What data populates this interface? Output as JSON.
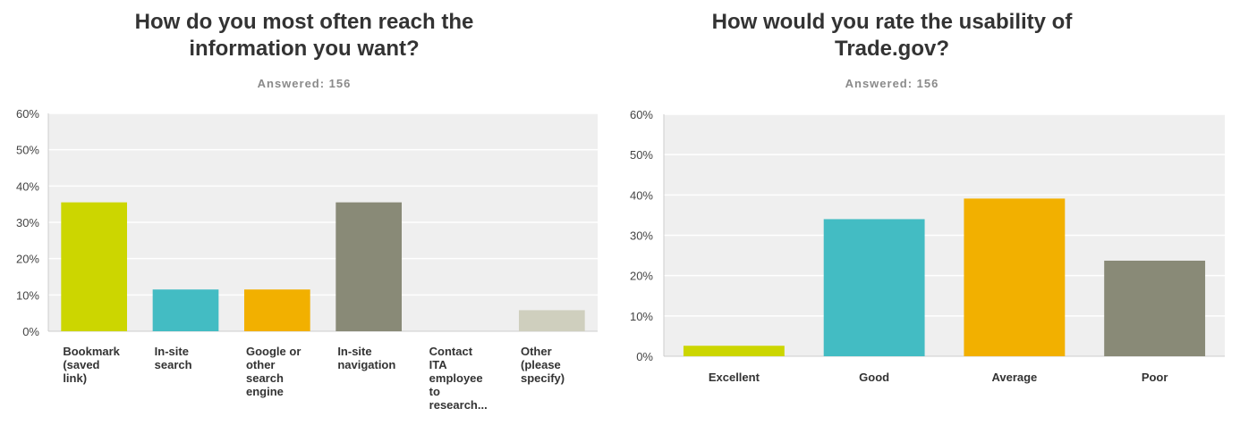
{
  "charts": [
    {
      "title_lines": [
        "How do you most often reach the",
        "information you want?"
      ],
      "answered": "Answered: 156"
    },
    {
      "title_lines": [
        "How would you rate the usability of",
        "Trade.gov?"
      ],
      "answered": "Answered: 156"
    }
  ],
  "chart_data": [
    {
      "type": "bar",
      "title": "How do you most often reach the information you want?",
      "subtitle": "Answered: 156",
      "categories": [
        [
          "Bookmark",
          "(saved",
          "link)"
        ],
        [
          "In-site",
          "search"
        ],
        [
          "Google or",
          "other",
          "search",
          "engine"
        ],
        [
          "In-site",
          "navigation"
        ],
        [
          "Contact",
          "ITA",
          "employee",
          "to",
          "research..."
        ],
        [
          "Other",
          "(please",
          "specify)"
        ]
      ],
      "values": [
        35.5,
        11.5,
        11.5,
        35.5,
        0,
        5.8
      ],
      "colors": [
        "#ccd600",
        "#43bcc3",
        "#f2b000",
        "#898a77",
        "#cfcfbe",
        "#cfcfbe"
      ],
      "ylim": [
        0,
        60
      ],
      "yticks": [
        0,
        10,
        20,
        30,
        40,
        50,
        60
      ],
      "ytick_labels": [
        "0%",
        "10%",
        "20%",
        "30%",
        "40%",
        "50%",
        "60%"
      ],
      "grid": true,
      "xlabel": "",
      "ylabel": ""
    },
    {
      "type": "bar",
      "title": "How would you rate the usability of Trade.gov?",
      "subtitle": "Answered: 156",
      "categories": [
        [
          "Excellent"
        ],
        [
          "Good"
        ],
        [
          "Average"
        ],
        [
          "Poor"
        ]
      ],
      "values": [
        2.6,
        34.0,
        39.1,
        23.7
      ],
      "colors": [
        "#ccd600",
        "#43bcc3",
        "#f2b000",
        "#898a77"
      ],
      "ylim": [
        0,
        60
      ],
      "yticks": [
        0,
        10,
        20,
        30,
        40,
        50,
        60
      ],
      "ytick_labels": [
        "0%",
        "10%",
        "20%",
        "30%",
        "40%",
        "50%",
        "60%"
      ],
      "grid": true,
      "xlabel": "",
      "ylabel": ""
    }
  ]
}
